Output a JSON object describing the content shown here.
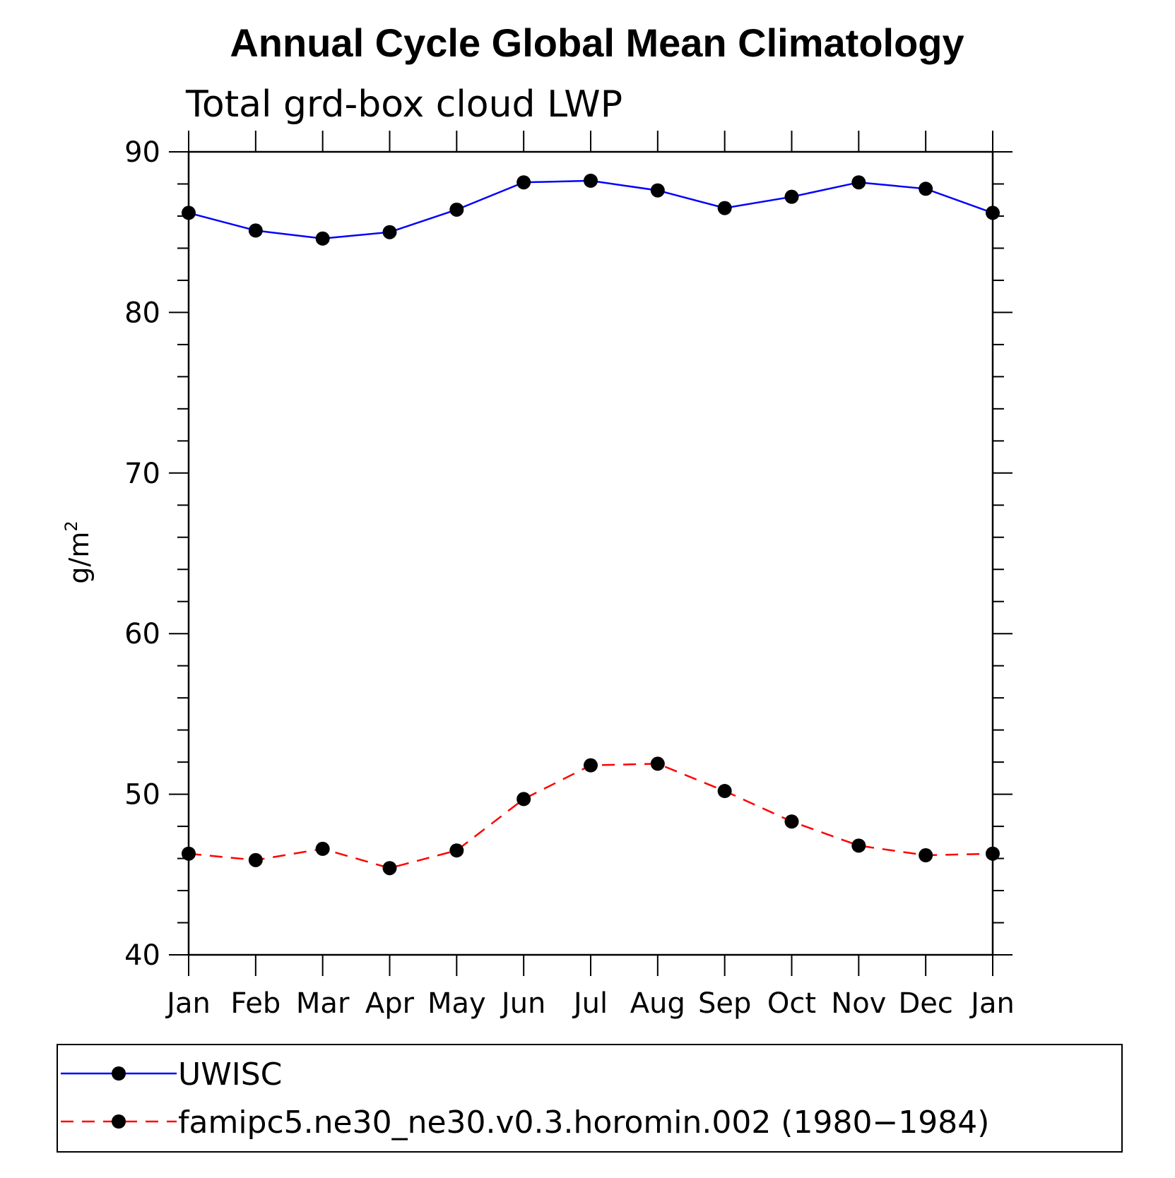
{
  "chart_data": {
    "type": "line",
    "title": "Annual Cycle Global Mean Climatology",
    "subtitle": "Total grd-box cloud LWP",
    "ylabel": "g/m",
    "ylabel_superscript": "2",
    "xlabel": "",
    "categories": [
      "Jan",
      "Feb",
      "Mar",
      "Apr",
      "May",
      "Jun",
      "Jul",
      "Aug",
      "Sep",
      "Oct",
      "Nov",
      "Dec",
      "Jan"
    ],
    "ylim": [
      40,
      90
    ],
    "yticks": [
      40,
      50,
      60,
      70,
      80,
      90
    ],
    "series": [
      {
        "name": "UWISC",
        "color": "#0000ff",
        "dash": "solid",
        "marker": "filled-circle",
        "values": [
          86.2,
          85.1,
          84.6,
          85.0,
          86.4,
          88.1,
          88.2,
          87.6,
          86.5,
          87.2,
          88.1,
          87.7,
          86.2
        ]
      },
      {
        "name": "famipc5.ne30_ne30.v0.3.horomin.002 (1980−1984)",
        "color": "#ff0000",
        "dash": "dashed",
        "marker": "filled-circle",
        "values": [
          46.3,
          45.9,
          46.6,
          45.4,
          46.5,
          49.7,
          51.8,
          51.9,
          50.2,
          48.3,
          46.8,
          46.2,
          46.3
        ]
      }
    ],
    "legend_placement": "bottom",
    "grid": false
  }
}
